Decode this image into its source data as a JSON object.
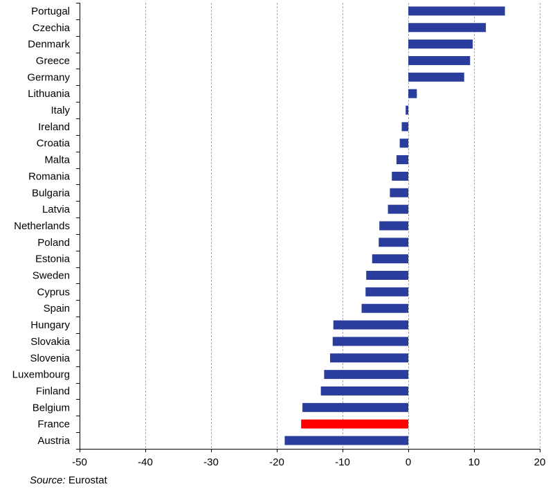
{
  "chart_data": {
    "type": "bar",
    "orientation": "horizontal",
    "categories": [
      "Portugal",
      "Czechia",
      "Denmark",
      "Greece",
      "Germany",
      "Lithuania",
      "Italy",
      "Ireland",
      "Croatia",
      "Malta",
      "Romania",
      "Bulgaria",
      "Latvia",
      "Netherlands",
      "Poland",
      "Estonia",
      "Sweden",
      "Cyprus",
      "Spain",
      "Hungary",
      "Slovakia",
      "Slovenia",
      "Luxembourg",
      "Finland",
      "Belgium",
      "France",
      "Austria"
    ],
    "values": [
      14.7,
      11.8,
      9.8,
      9.4,
      8.5,
      1.3,
      -0.4,
      -1.0,
      -1.3,
      -1.8,
      -2.5,
      -2.8,
      -3.1,
      -4.4,
      -4.5,
      -5.5,
      -6.4,
      -6.5,
      -7.1,
      -11.4,
      -11.5,
      -11.9,
      -12.8,
      -13.3,
      -16.1,
      -16.3,
      -18.8
    ],
    "highlight": "France",
    "colors": {
      "bar": "#2a3d9c",
      "highlight": "#ff0000",
      "grid": "#aaaaaa",
      "axis": "#000000"
    },
    "xlim": [
      -50,
      20
    ],
    "xticks": [
      -50,
      -40,
      -30,
      -20,
      -10,
      0,
      10,
      20
    ],
    "xtick_labels": [
      "-50",
      "-40",
      "-30",
      "-20",
      "-10",
      "0",
      "10",
      "20"
    ],
    "grid": "vertical dashed",
    "title": "",
    "xlabel": "",
    "ylabel": ""
  },
  "source": {
    "label": "Source:",
    "text": " Eurostat"
  }
}
